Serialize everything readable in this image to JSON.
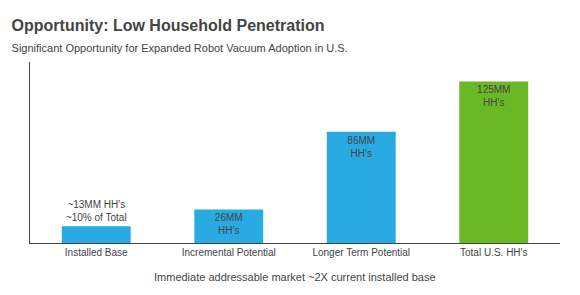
{
  "chart_data": {
    "type": "bar",
    "title": "Opportunity: Low Household Penetration",
    "subtitle": "Significant Opportunity for Expanded Robot Vacuum Adoption in U.S.",
    "categories": [
      "Installed Base",
      "Incremental Potential",
      "Longer Term Potential",
      "Total U.S. HH's"
    ],
    "values": [
      13,
      26,
      86,
      125
    ],
    "value_labels": [
      "~13MM HH's\n~10% of Total",
      "26MM\nHH's",
      "86MM\nHH's",
      "125MM\nHH's"
    ],
    "data_labels": true,
    "colors": [
      "#29abe2",
      "#29abe2",
      "#29abe2",
      "#6ab825"
    ],
    "ylim": [
      0,
      140
    ],
    "yticks": [],
    "tick_labels": "x",
    "grid": false,
    "annotations": [
      "Immediate addressable market ~2X current installed base"
    ]
  }
}
